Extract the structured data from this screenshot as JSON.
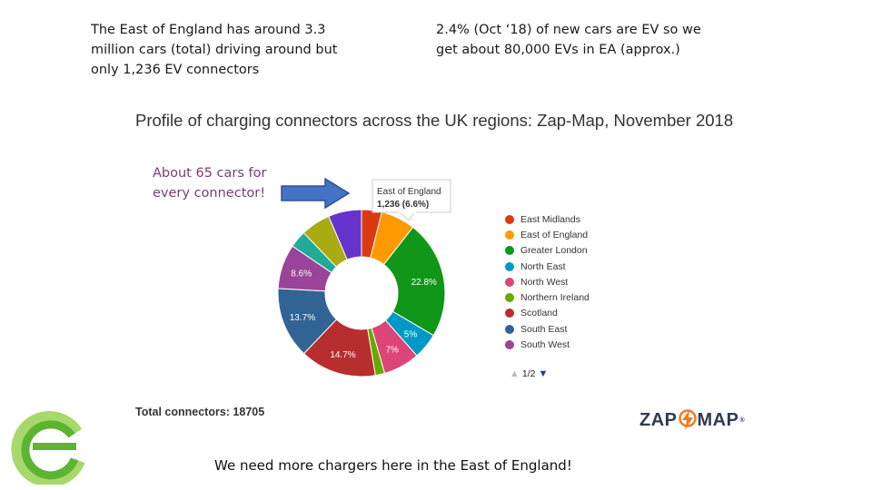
{
  "slide": {
    "note_left": "The East of England has around 3.3 million cars (total) driving around but only 1,236 EV connectors",
    "note_right": "2.4% (Oct ‘18) of new cars are EV so we get about 80,000 EVs in EA (approx.)",
    "annotation": "About 65 cars for every connector!",
    "bottom_note": "We need more chargers here in the East of England!"
  },
  "chart_data": {
    "type": "pie",
    "title": "Profile of charging connectors across the UK regions: Zap-Map, November 2018",
    "slices": [
      {
        "label": "East Midlands",
        "value": 3.9,
        "color": "#dc3912",
        "shown_pct": ""
      },
      {
        "label": "East of England",
        "value": 6.6,
        "color": "#ff9900",
        "shown_pct": ""
      },
      {
        "label": "Greater London",
        "value": 22.8,
        "color": "#109618",
        "shown_pct": "22.8%"
      },
      {
        "label": "North East",
        "value": 5.0,
        "color": "#0099c6",
        "shown_pct": "5%"
      },
      {
        "label": "North West",
        "value": 7.0,
        "color": "#dd4477",
        "shown_pct": "7%"
      },
      {
        "label": "Northern Ireland",
        "value": 1.8,
        "color": "#66aa00",
        "shown_pct": ""
      },
      {
        "label": "Scotland",
        "value": 14.7,
        "color": "#b82e2e",
        "shown_pct": "14.7%"
      },
      {
        "label": "South East",
        "value": 13.7,
        "color": "#316395",
        "shown_pct": "13.7%"
      },
      {
        "label": "South West",
        "value": 8.6,
        "color": "#994499",
        "shown_pct": "8.6%"
      },
      {
        "label": "",
        "value": 3.3,
        "color": "#22aa99",
        "shown_pct": ""
      },
      {
        "label": "",
        "value": 5.7,
        "color": "#aaaa11",
        "shown_pct": ""
      },
      {
        "label": "",
        "value": 6.4,
        "color": "#6633cc",
        "shown_pct": ""
      }
    ],
    "tooltip": {
      "label": "East of England",
      "value": "1,236 (6.6%)"
    },
    "legend_position": "right",
    "pager": "1/2",
    "total": "Total connectors: 18705"
  },
  "logos": {
    "zap_left": "ZAP",
    "zap_right": "MAP",
    "zap_reg": "®"
  },
  "colors": {
    "arrow": "#4472c4",
    "logo_green": "#5cb531",
    "logo_light_green": "#a6d96a",
    "zap_bolt": "#f07c22"
  }
}
